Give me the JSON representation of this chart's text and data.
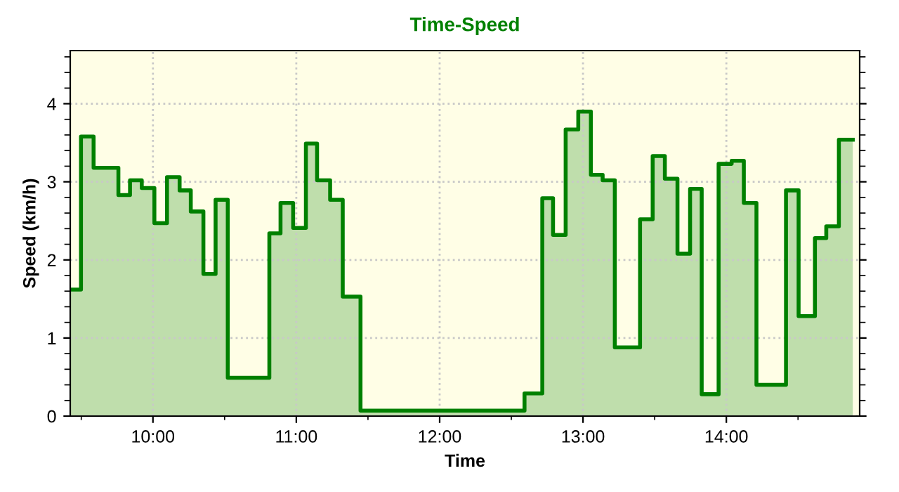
{
  "chart_data": {
    "type": "area",
    "title": "Time-Speed",
    "xlabel": "Time",
    "ylabel": "Speed (km/h)",
    "x": [
      9.423,
      9.498,
      9.498,
      9.586,
      9.586,
      9.759,
      9.759,
      9.84,
      9.84,
      9.922,
      9.922,
      10.01,
      10.01,
      10.098,
      10.098,
      10.186,
      10.186,
      10.264,
      10.264,
      10.352,
      10.352,
      10.437,
      10.437,
      10.522,
      10.522,
      10.812,
      10.812,
      10.89,
      10.89,
      10.978,
      10.978,
      11.067,
      11.067,
      11.145,
      11.145,
      11.236,
      11.236,
      11.324,
      11.324,
      11.448,
      11.448,
      12.592,
      12.592,
      12.716,
      12.716,
      12.791,
      12.791,
      12.879,
      12.879,
      12.967,
      12.967,
      13.055,
      13.055,
      13.137,
      13.137,
      13.222,
      13.222,
      13.398,
      13.398,
      13.486,
      13.486,
      13.571,
      13.571,
      13.659,
      13.659,
      13.747,
      13.747,
      13.828,
      13.828,
      13.946,
      13.946,
      14.037,
      14.037,
      14.122,
      14.122,
      14.21,
      14.21,
      14.416,
      14.416,
      14.504,
      14.504,
      14.618,
      14.618,
      14.697,
      14.697,
      14.785,
      14.785,
      14.882
    ],
    "series": [
      {
        "color": "#008000",
        "values": [
          1.62,
          1.62,
          3.58,
          3.58,
          3.18,
          3.18,
          2.83,
          2.83,
          3.02,
          3.02,
          2.92,
          2.92,
          2.47,
          2.47,
          3.06,
          3.06,
          2.89,
          2.89,
          2.62,
          2.62,
          1.82,
          1.82,
          2.77,
          2.77,
          0.49,
          0.49,
          2.34,
          2.34,
          2.73,
          2.73,
          2.41,
          2.41,
          3.49,
          3.49,
          3.02,
          3.02,
          2.77,
          2.77,
          1.53,
          1.53,
          0.07,
          0.07,
          0.29,
          0.29,
          2.79,
          2.79,
          2.32,
          2.32,
          3.67,
          3.67,
          3.9,
          3.9,
          3.09,
          3.09,
          3.02,
          3.02,
          0.88,
          0.88,
          2.52,
          2.52,
          3.33,
          3.33,
          3.04,
          3.04,
          2.08,
          2.08,
          2.91,
          2.91,
          0.28,
          0.28,
          3.23,
          3.23,
          3.27,
          3.27,
          2.73,
          2.73,
          0.4,
          0.4,
          2.89,
          2.89,
          1.28,
          1.28,
          2.28,
          2.28,
          2.43,
          2.43,
          3.54,
          3.54
        ]
      }
    ],
    "xlim": [
      9.423,
      14.93
    ],
    "xticks": [
      {
        "value": 9.5,
        "label": null
      },
      {
        "value": 10,
        "label": "10:00"
      },
      {
        "value": 10.5,
        "label": null
      },
      {
        "value": 11,
        "label": "11:00"
      },
      {
        "value": 11.5,
        "label": null
      },
      {
        "value": 12,
        "label": "12:00"
      },
      {
        "value": 12.5,
        "label": null
      },
      {
        "value": 13,
        "label": "13:00"
      },
      {
        "value": 13.5,
        "label": null
      },
      {
        "value": 14,
        "label": "14:00"
      },
      {
        "value": 14.5,
        "label": null
      }
    ],
    "ylim": [
      0,
      4.68
    ],
    "yticks": [
      0,
      {
        "value": 0.2,
        "label": null
      },
      {
        "value": 0.4,
        "label": null
      },
      {
        "value": 0.6,
        "label": null
      },
      {
        "value": 0.8,
        "label": null
      },
      1,
      {
        "value": 1.2,
        "label": null
      },
      {
        "value": 1.4,
        "label": null
      },
      {
        "value": 1.6,
        "label": null
      },
      {
        "value": 1.8,
        "label": null
      },
      2,
      {
        "value": 2.2,
        "label": null
      },
      {
        "value": 2.4,
        "label": null
      },
      {
        "value": 2.6,
        "label": null
      },
      {
        "value": 2.8,
        "label": null
      },
      3,
      {
        "value": 3.2,
        "label": null
      },
      {
        "value": 3.4,
        "label": null
      },
      {
        "value": 3.6,
        "label": null
      },
      {
        "value": 3.8,
        "label": null
      },
      4,
      {
        "value": 4.2,
        "label": null
      },
      {
        "value": 4.4,
        "label": null
      },
      {
        "value": 4.6,
        "label": null
      }
    ],
    "grid": true,
    "legend": false
  }
}
